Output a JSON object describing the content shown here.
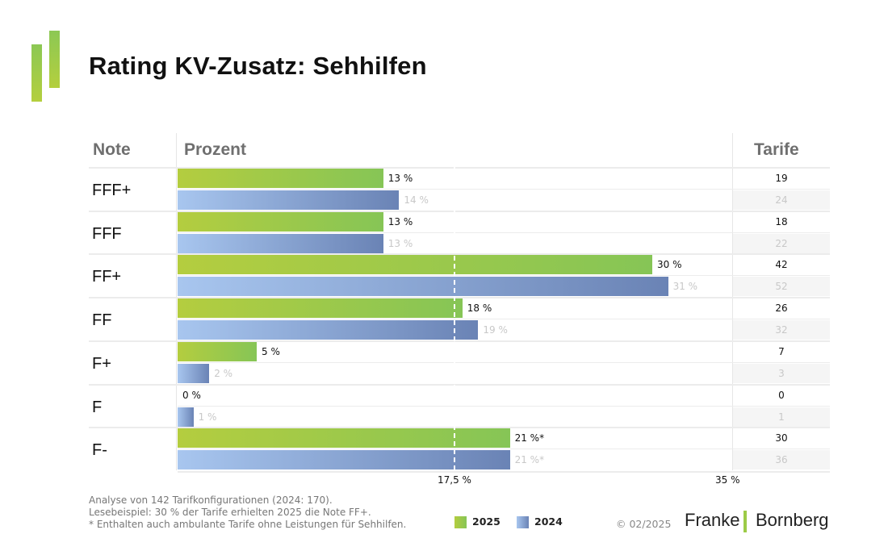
{
  "title": "Rating KV-Zusatz: Sehhilfen",
  "logo_icon": "green-bars-logo",
  "headers": {
    "note": "Note",
    "prozent": "Prozent",
    "tarife": "Tarife"
  },
  "colors": {
    "series_2025": "#8cc854",
    "series_2024": "#7f98c8"
  },
  "chart_data": {
    "type": "bar",
    "orientation": "horizontal",
    "title": "Rating KV-Zusatz: Sehhilfen",
    "categories": [
      "FFF+",
      "FFF",
      "FF+",
      "FF",
      "F+",
      "F",
      "F-"
    ],
    "series": [
      {
        "name": "2025",
        "values": [
          13,
          13,
          30,
          18,
          5,
          0,
          21
        ],
        "labels": [
          "13 %",
          "13 %",
          "30 %",
          "18 %",
          "5 %",
          "0 %",
          "21 %*"
        ],
        "tarife": [
          "19",
          "18",
          "42",
          "26",
          "7",
          "0",
          "30"
        ]
      },
      {
        "name": "2024",
        "values": [
          14,
          13,
          31,
          19,
          2,
          1,
          21
        ],
        "labels": [
          "14 %",
          "13 %",
          "31 %",
          "19 %",
          "2 %",
          "1 %",
          "21 %*"
        ],
        "tarife": [
          "24",
          "22",
          "52",
          "32",
          "3",
          "1",
          "36"
        ]
      }
    ],
    "xlim": [
      0,
      35
    ],
    "xticks": [
      17.5,
      35
    ],
    "xtick_labels": [
      "17,5 %",
      "35 %"
    ],
    "reference_line": 17.5,
    "legend": [
      "2025",
      "2024"
    ],
    "legend_position": "bottom"
  },
  "footnotes": [
    "Analyse von 142 Tarifkonfigurationen (2024: 170).",
    "Lesebeispiel: 30 % der Tarife erhielten 2025 die Note FF+.",
    "* Enthalten auch ambulante Tarife ohne Leistungen für Sehhilfen."
  ],
  "legend": {
    "a": "2025",
    "b": "2024"
  },
  "copyright": "© 02/2025",
  "brand": {
    "left": "Franke",
    "right": "Bornberg"
  }
}
